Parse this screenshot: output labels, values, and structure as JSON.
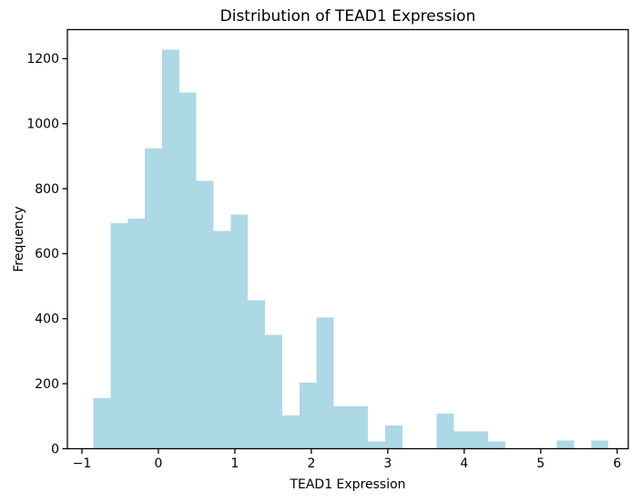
{
  "chart_data": {
    "type": "bar",
    "subtype": "histogram",
    "title": "Distribution of TEAD1 Expression",
    "xlabel": "TEAD1 Expression",
    "ylabel": "Frequency",
    "bar_color": "#ADD8E6",
    "axis_color": "#000000",
    "background_color": "#ffffff",
    "grid": false,
    "legend": null,
    "bin_edges": [
      -0.85,
      -0.626,
      -0.401,
      -0.177,
      0.048,
      0.272,
      0.497,
      0.721,
      0.946,
      1.17,
      1.395,
      1.62,
      1.844,
      2.069,
      2.293,
      2.518,
      2.742,
      2.967,
      3.191,
      3.416,
      3.64,
      3.865,
      4.089,
      4.314,
      4.538,
      4.763,
      4.987,
      5.212,
      5.436,
      5.661,
      5.885
    ],
    "counts": [
      155,
      694,
      708,
      924,
      1228,
      1096,
      824,
      670,
      721,
      457,
      351,
      102,
      203,
      404,
      130,
      130,
      22,
      72,
      0,
      0,
      108,
      53,
      53,
      23,
      0,
      0,
      0,
      25,
      0,
      25
    ],
    "x_ticks": [
      -1,
      0,
      1,
      2,
      3,
      4,
      5,
      6
    ],
    "x_tick_labels": [
      "−1",
      "0",
      "1",
      "2",
      "3",
      "4",
      "5",
      "6"
    ],
    "y_ticks": [
      0,
      200,
      400,
      600,
      800,
      1000,
      1200
    ],
    "y_tick_labels": [
      "0",
      "200",
      "400",
      "600",
      "800",
      "1000",
      "1200"
    ],
    "xlim": [
      -1.19,
      6.145
    ],
    "ylim": [
      0,
      1289.4
    ]
  }
}
